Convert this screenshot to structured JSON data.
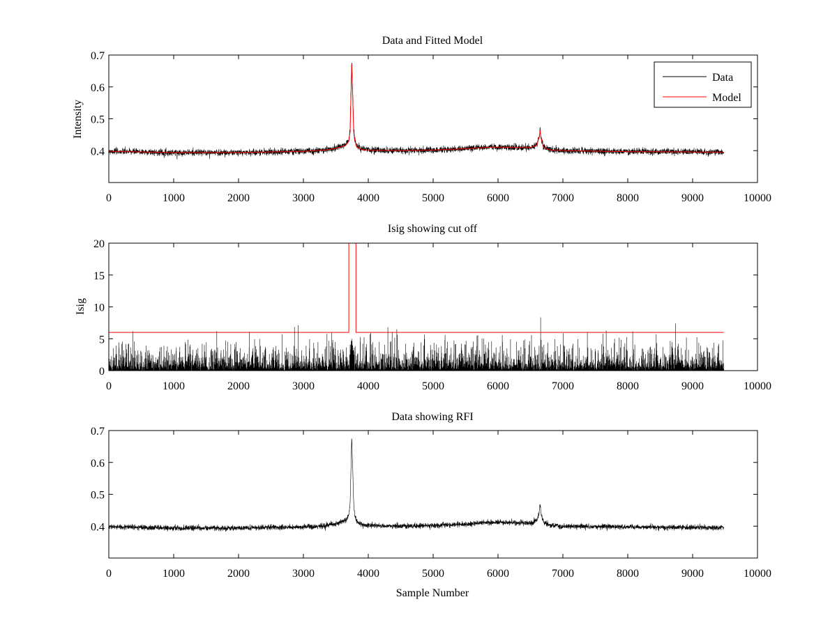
{
  "chart_data": [
    {
      "type": "line",
      "title": "Data and Fitted Model",
      "xlabel": "",
      "ylabel": "Intensity",
      "xlim": [
        0,
        10000
      ],
      "ylim": [
        0.3,
        0.7
      ],
      "xticks": [
        "0",
        "1000",
        "2000",
        "3000",
        "4000",
        "5000",
        "6000",
        "7000",
        "8000",
        "9000",
        "10000"
      ],
      "yticks": [
        "0.4",
        "0.5",
        "0.6",
        "0.7"
      ],
      "legend": {
        "position": "top-right",
        "entries": [
          "Data",
          "Model"
        ]
      },
      "grid": false,
      "series": [
        {
          "name": "Data",
          "color": "#000000",
          "kind": "noisy",
          "x": [
            0,
            500,
            1000,
            1500,
            2000,
            2500,
            3000,
            3300,
            3500,
            3650,
            3700,
            3720,
            3735,
            3745,
            3760,
            3775,
            3790,
            3820,
            3900,
            4000,
            4500,
            5000,
            5500,
            5800,
            6000,
            6300,
            6500,
            6600,
            6640,
            6650,
            6660,
            6700,
            6800,
            7000,
            8000,
            9000,
            9480
          ],
          "y": [
            0.398,
            0.396,
            0.394,
            0.394,
            0.394,
            0.396,
            0.398,
            0.401,
            0.408,
            0.418,
            0.435,
            0.47,
            0.6,
            0.68,
            0.58,
            0.47,
            0.437,
            0.415,
            0.405,
            0.402,
            0.4,
            0.402,
            0.406,
            0.411,
            0.412,
            0.41,
            0.41,
            0.418,
            0.45,
            0.468,
            0.445,
            0.412,
            0.403,
            0.4,
            0.397,
            0.396,
            0.395
          ],
          "noise": 0.005
        },
        {
          "name": "Model",
          "color": "#ff0000",
          "kind": "smooth",
          "x": [
            0,
            500,
            1000,
            1500,
            2000,
            2500,
            3000,
            3300,
            3500,
            3650,
            3700,
            3720,
            3735,
            3745,
            3760,
            3775,
            3790,
            3820,
            3900,
            4000,
            4500,
            5000,
            5500,
            5800,
            6000,
            6300,
            6500,
            6600,
            6640,
            6650,
            6660,
            6700,
            6800,
            7000,
            8000,
            9000,
            9480
          ],
          "y": [
            0.398,
            0.396,
            0.394,
            0.394,
            0.394,
            0.396,
            0.398,
            0.401,
            0.407,
            0.416,
            0.43,
            0.46,
            0.59,
            0.672,
            0.57,
            0.46,
            0.432,
            0.412,
            0.403,
            0.401,
            0.4,
            0.402,
            0.406,
            0.41,
            0.411,
            0.41,
            0.41,
            0.417,
            0.448,
            0.465,
            0.442,
            0.411,
            0.402,
            0.4,
            0.397,
            0.396,
            0.395
          ],
          "noise": 0
        }
      ]
    },
    {
      "type": "line",
      "title": "Isig showing cut off",
      "xlabel": "",
      "ylabel": "Isig",
      "xlim": [
        0,
        10000
      ],
      "ylim": [
        0,
        20
      ],
      "xticks": [
        "0",
        "1000",
        "2000",
        "3000",
        "4000",
        "5000",
        "6000",
        "7000",
        "8000",
        "9000",
        "10000"
      ],
      "yticks": [
        "0",
        "5",
        "10",
        "15",
        "20"
      ],
      "grid": false,
      "series": [
        {
          "name": "Isig",
          "color": "#000000",
          "kind": "spiky",
          "x": [
            0,
            3600,
            3700,
            3745,
            3790,
            3900,
            9480
          ],
          "y": [
            0.8,
            0.8,
            1.2,
            3.5,
            1.2,
            0.8,
            0.8
          ],
          "noise": 1.8
        },
        {
          "name": "Cut off",
          "color": "#ff0000",
          "kind": "step",
          "x": [
            0,
            3700,
            3700,
            3810,
            3810,
            9480
          ],
          "y": [
            6,
            6,
            20,
            20,
            6,
            6
          ],
          "noise": 0
        }
      ]
    },
    {
      "type": "line",
      "title": "Data showing RFI",
      "xlabel": "Sample Number",
      "ylabel": "",
      "xlim": [
        0,
        10000
      ],
      "ylim": [
        0.3,
        0.7
      ],
      "xticks": [
        "0",
        "1000",
        "2000",
        "3000",
        "4000",
        "5000",
        "6000",
        "7000",
        "8000",
        "9000",
        "10000"
      ],
      "yticks": [
        "0.4",
        "0.5",
        "0.6",
        "0.7"
      ],
      "grid": false,
      "series": [
        {
          "name": "Data",
          "color": "#000000",
          "kind": "noisy",
          "x": [
            0,
            500,
            1000,
            1500,
            2000,
            2500,
            3000,
            3300,
            3500,
            3650,
            3700,
            3720,
            3735,
            3745,
            3760,
            3775,
            3790,
            3820,
            3900,
            4000,
            4500,
            5000,
            5500,
            5800,
            6000,
            6300,
            6500,
            6600,
            6640,
            6650,
            6660,
            6700,
            6800,
            7000,
            8000,
            9000,
            9480
          ],
          "y": [
            0.398,
            0.396,
            0.394,
            0.394,
            0.394,
            0.396,
            0.398,
            0.401,
            0.408,
            0.418,
            0.435,
            0.47,
            0.6,
            0.68,
            0.58,
            0.47,
            0.437,
            0.415,
            0.405,
            0.402,
            0.4,
            0.402,
            0.406,
            0.411,
            0.412,
            0.41,
            0.41,
            0.418,
            0.45,
            0.468,
            0.445,
            0.412,
            0.403,
            0.4,
            0.397,
            0.396,
            0.395
          ],
          "noise": 0.004
        }
      ]
    }
  ]
}
